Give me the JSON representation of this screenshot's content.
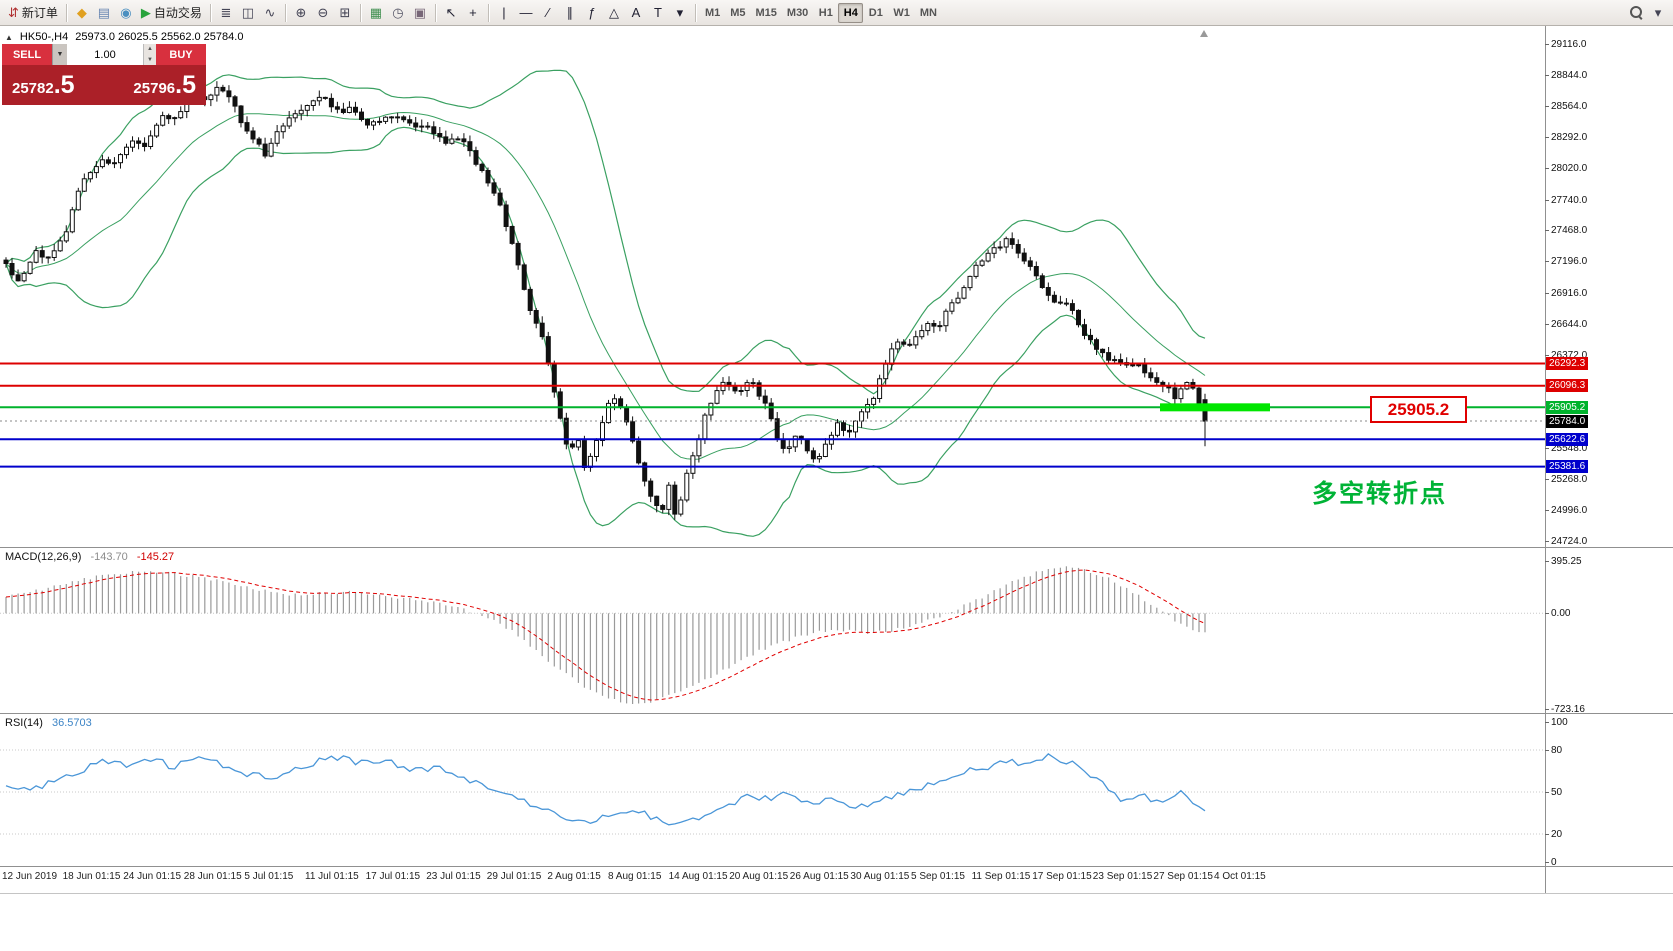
{
  "toolbar": {
    "groups": [
      {
        "items": [
          {
            "name": "new-order",
            "glyph": "⇵",
            "color": "#b03030",
            "label": "新订单"
          }
        ]
      },
      {
        "items": [
          {
            "name": "metaeditor",
            "glyph": "◆",
            "color": "#e0a020"
          },
          {
            "name": "market-watch",
            "glyph": "▤",
            "color": "#6886b2"
          },
          {
            "name": "strategy-tester",
            "glyph": "◉",
            "color": "#4a8fc0"
          },
          {
            "name": "autotrading",
            "glyph": "▶",
            "color": "#28a33c",
            "label": "自动交易"
          }
        ]
      },
      {
        "items": [
          {
            "name": "chart-bars",
            "glyph": "≣",
            "color": "#444455"
          },
          {
            "name": "chart-candles",
            "glyph": "◫",
            "color": "#444455"
          },
          {
            "name": "chart-line",
            "glyph": "∿",
            "color": "#444455"
          }
        ]
      },
      {
        "items": [
          {
            "name": "zoom-in",
            "glyph": "⊕",
            "color": "#444455"
          },
          {
            "name": "zoom-out",
            "glyph": "⊖",
            "color": "#444455"
          },
          {
            "name": "tile-windows",
            "glyph": "⊞",
            "color": "#444455"
          }
        ]
      },
      {
        "items": [
          {
            "name": "indicators-list",
            "glyph": "▦",
            "color": "#3f8f4f"
          },
          {
            "name": "period-clock",
            "glyph": "◷",
            "color": "#555566"
          },
          {
            "name": "chart-snapshot",
            "glyph": "▣",
            "color": "#776677"
          }
        ]
      },
      {
        "items": [
          {
            "name": "cursor",
            "glyph": "↖",
            "color": "#222233"
          },
          {
            "name": "crosshair",
            "glyph": "+",
            "color": "#222233"
          }
        ]
      },
      {
        "items": [
          {
            "name": "draw-vertical-line",
            "glyph": "|",
            "color": "#222233"
          },
          {
            "name": "draw-horizontal-line",
            "glyph": "—",
            "color": "#222233"
          },
          {
            "name": "draw-trendline",
            "glyph": "∕",
            "color": "#222233"
          },
          {
            "name": "draw-channel",
            "glyph": "∥",
            "color": "#222233"
          },
          {
            "name": "draw-fibonacci",
            "glyph": "ƒ",
            "color": "#222233"
          },
          {
            "name": "draw-shapes",
            "glyph": "△",
            "color": "#222233"
          },
          {
            "name": "draw-text",
            "glyph": "A",
            "color": "#222233"
          },
          {
            "name": "draw-label",
            "glyph": "T",
            "color": "#222233"
          },
          {
            "name": "draw-arrows",
            "glyph": "▾",
            "color": "#222233"
          }
        ]
      }
    ],
    "timeframes": {
      "labels": [
        "M1",
        "M5",
        "M15",
        "M30",
        "H1",
        "H4",
        "D1",
        "W1",
        "MN"
      ],
      "active": "H4"
    },
    "right_items": [
      {
        "name": "search",
        "glyph": "mag"
      },
      {
        "name": "more",
        "glyph": "▾",
        "color": "#444455"
      }
    ]
  },
  "chart": {
    "title_symbol": "HK50-,H4",
    "title_ohlc": "25973.0 26025.5 25562.0 25784.0"
  },
  "trade_panel": {
    "sell_label": "SELL",
    "buy_label": "BUY",
    "volume": "1.00",
    "sell_price_main": "25782",
    "sell_price_frac": ".5",
    "buy_price_main": "25796",
    "buy_price_frac": ".5"
  },
  "macd": {
    "name": "MACD(12,26,9)",
    "value_main": "-143.70",
    "value_signal": "-145.27"
  },
  "rsi": {
    "name": "RSI(14)",
    "value": "36.5703"
  },
  "annotations": {
    "price_callout": "25905.2",
    "note": "多空转折点"
  },
  "time_axis": [
    "12 Jun 2019",
    "18 Jun 01:15",
    "24 Jun 01:15",
    "28 Jun 01:15",
    "5 Jul 01:15",
    "11 Jul 01:15",
    "17 Jul 01:15",
    "23 Jul 01:15",
    "29 Jul 01:15",
    "2 Aug 01:15",
    "8 Aug 01:15",
    "14 Aug 01:15",
    "20 Aug 01:15",
    "26 Aug 01:15",
    "30 Aug 01:15",
    "5 Sep 01:15",
    "11 Sep 01:15",
    "17 Sep 01:15",
    "23 Sep 01:15",
    "27 Sep 01:15",
    "4 Oct 01:15"
  ],
  "chart_data": {
    "type": "candlestick",
    "symbol": "HK50-",
    "timeframe": "H4",
    "ohlc_header": {
      "open": 25973.0,
      "high": 26025.5,
      "low": 25562.0,
      "close": 25784.0
    },
    "bid": 25782.5,
    "ask": 25796.5,
    "current_price": 25784.0,
    "y_axis_ticks": [
      29116.0,
      28844.0,
      28564.0,
      28292.0,
      28020.0,
      27740.0,
      27468.0,
      27196.0,
      26916.0,
      26644.0,
      26372.0,
      25548.0,
      25268.0,
      24996.0,
      24724.0
    ],
    "h_lines": [
      {
        "price": 26292.3,
        "color": "#dd0000",
        "width": 2
      },
      {
        "price": 26096.3,
        "color": "#dd0000",
        "width": 2
      },
      {
        "price": 25905.2,
        "color": "#00b32c",
        "width": 2,
        "highlight_from": 0.751,
        "highlight_to": 0.822
      },
      {
        "price": 25622.6,
        "color": "#0000cc",
        "width": 2
      },
      {
        "price": 25381.6,
        "color": "#0000cc",
        "width": 2
      }
    ],
    "bollinger": {
      "period": 20,
      "deviation": 2
    },
    "price_path_anchors": [
      [
        0.0,
        27150
      ],
      [
        0.012,
        27000
      ],
      [
        0.025,
        27300
      ],
      [
        0.037,
        27200
      ],
      [
        0.05,
        27450
      ],
      [
        0.062,
        27850
      ],
      [
        0.079,
        28100
      ],
      [
        0.091,
        28050
      ],
      [
        0.104,
        28250
      ],
      [
        0.116,
        28200
      ],
      [
        0.129,
        28500
      ],
      [
        0.141,
        28450
      ],
      [
        0.154,
        28700
      ],
      [
        0.166,
        28600
      ],
      [
        0.178,
        28780
      ],
      [
        0.191,
        28550
      ],
      [
        0.203,
        28300
      ],
      [
        0.216,
        28150
      ],
      [
        0.228,
        28350
      ],
      [
        0.241,
        28500
      ],
      [
        0.253,
        28600
      ],
      [
        0.266,
        28650
      ],
      [
        0.278,
        28500
      ],
      [
        0.29,
        28550
      ],
      [
        0.303,
        28400
      ],
      [
        0.315,
        28450
      ],
      [
        0.328,
        28500
      ],
      [
        0.34,
        28350
      ],
      [
        0.353,
        28400
      ],
      [
        0.365,
        28250
      ],
      [
        0.378,
        28300
      ],
      [
        0.39,
        28100
      ],
      [
        0.402,
        27900
      ],
      [
        0.415,
        27600
      ],
      [
        0.423,
        27300
      ],
      [
        0.432,
        26950
      ],
      [
        0.44,
        26700
      ],
      [
        0.448,
        26500
      ],
      [
        0.456,
        26100
      ],
      [
        0.463,
        25750
      ],
      [
        0.47,
        25450
      ],
      [
        0.476,
        25650
      ],
      [
        0.483,
        25350
      ],
      [
        0.49,
        25550
      ],
      [
        0.498,
        25800
      ],
      [
        0.506,
        26000
      ],
      [
        0.515,
        25900
      ],
      [
        0.523,
        25600
      ],
      [
        0.531,
        25300
      ],
      [
        0.539,
        25100
      ],
      [
        0.546,
        24950
      ],
      [
        0.553,
        25200
      ],
      [
        0.559,
        24880
      ],
      [
        0.566,
        25250
      ],
      [
        0.573,
        25500
      ],
      [
        0.581,
        25750
      ],
      [
        0.589,
        26000
      ],
      [
        0.598,
        26100
      ],
      [
        0.61,
        26050
      ],
      [
        0.622,
        26150
      ],
      [
        0.635,
        25900
      ],
      [
        0.643,
        25650
      ],
      [
        0.651,
        25500
      ],
      [
        0.66,
        25700
      ],
      [
        0.668,
        25500
      ],
      [
        0.676,
        25400
      ],
      [
        0.685,
        25600
      ],
      [
        0.693,
        25750
      ],
      [
        0.701,
        25650
      ],
      [
        0.71,
        25800
      ],
      [
        0.718,
        25900
      ],
      [
        0.726,
        26050
      ],
      [
        0.734,
        26300
      ],
      [
        0.743,
        26500
      ],
      [
        0.751,
        26450
      ],
      [
        0.759,
        26550
      ],
      [
        0.768,
        26650
      ],
      [
        0.776,
        26600
      ],
      [
        0.784,
        26750
      ],
      [
        0.793,
        26850
      ],
      [
        0.801,
        27000
      ],
      [
        0.809,
        27150
      ],
      [
        0.817,
        27250
      ],
      [
        0.826,
        27300
      ],
      [
        0.834,
        27400
      ],
      [
        0.842,
        27300
      ],
      [
        0.851,
        27200
      ],
      [
        0.859,
        27050
      ],
      [
        0.867,
        26900
      ],
      [
        0.876,
        26800
      ],
      [
        0.884,
        26850
      ],
      [
        0.892,
        26700
      ],
      [
        0.9,
        26550
      ],
      [
        0.909,
        26450
      ],
      [
        0.917,
        26350
      ],
      [
        0.925,
        26300
      ],
      [
        0.934,
        26250
      ],
      [
        0.942,
        26300
      ],
      [
        0.95,
        26200
      ],
      [
        0.959,
        26150
      ],
      [
        0.967,
        26100
      ],
      [
        0.975,
        26000
      ],
      [
        0.983,
        26150
      ],
      [
        0.992,
        26050
      ],
      [
        1.0,
        25784
      ]
    ],
    "macd": {
      "params": "12,26,9",
      "main": -143.7,
      "signal": -145.27,
      "scale_max": 395.25,
      "scale_min": -723.16,
      "anchors": [
        [
          0.0,
          120
        ],
        [
          0.03,
          180
        ],
        [
          0.06,
          250
        ],
        [
          0.09,
          300
        ],
        [
          0.11,
          320
        ],
        [
          0.14,
          300
        ],
        [
          0.17,
          260
        ],
        [
          0.2,
          200
        ],
        [
          0.23,
          140
        ],
        [
          0.26,
          150
        ],
        [
          0.29,
          160
        ],
        [
          0.32,
          130
        ],
        [
          0.35,
          90
        ],
        [
          0.38,
          40
        ],
        [
          0.4,
          -30
        ],
        [
          0.42,
          -120
        ],
        [
          0.44,
          -260
        ],
        [
          0.46,
          -420
        ],
        [
          0.48,
          -540
        ],
        [
          0.5,
          -640
        ],
        [
          0.52,
          -690
        ],
        [
          0.54,
          -660
        ],
        [
          0.56,
          -600
        ],
        [
          0.58,
          -520
        ],
        [
          0.6,
          -420
        ],
        [
          0.62,
          -320
        ],
        [
          0.64,
          -240
        ],
        [
          0.66,
          -180
        ],
        [
          0.68,
          -140
        ],
        [
          0.7,
          -130
        ],
        [
          0.72,
          -150
        ],
        [
          0.74,
          -130
        ],
        [
          0.76,
          -80
        ],
        [
          0.78,
          -20
        ],
        [
          0.8,
          60
        ],
        [
          0.82,
          150
        ],
        [
          0.84,
          240
        ],
        [
          0.86,
          310
        ],
        [
          0.88,
          350
        ],
        [
          0.9,
          330
        ],
        [
          0.92,
          260
        ],
        [
          0.94,
          160
        ],
        [
          0.96,
          40
        ],
        [
          0.98,
          -90
        ],
        [
          1.0,
          -143.7
        ]
      ]
    },
    "rsi": {
      "period": 14,
      "value": 36.5703,
      "levels": [
        80,
        50,
        20
      ],
      "axis": [
        100,
        80,
        50,
        20,
        0
      ],
      "anchors": [
        [
          0.0,
          55
        ],
        [
          0.02,
          50
        ],
        [
          0.04,
          58
        ],
        [
          0.06,
          65
        ],
        [
          0.08,
          72
        ],
        [
          0.1,
          70
        ],
        [
          0.12,
          74
        ],
        [
          0.14,
          68
        ],
        [
          0.16,
          73
        ],
        [
          0.18,
          70
        ],
        [
          0.2,
          63
        ],
        [
          0.22,
          60
        ],
        [
          0.24,
          66
        ],
        [
          0.26,
          72
        ],
        [
          0.28,
          74
        ],
        [
          0.3,
          70
        ],
        [
          0.32,
          72
        ],
        [
          0.34,
          65
        ],
        [
          0.36,
          68
        ],
        [
          0.38,
          60
        ],
        [
          0.4,
          55
        ],
        [
          0.42,
          48
        ],
        [
          0.44,
          40
        ],
        [
          0.46,
          33
        ],
        [
          0.48,
          28
        ],
        [
          0.5,
          33
        ],
        [
          0.52,
          38
        ],
        [
          0.54,
          32
        ],
        [
          0.56,
          26
        ],
        [
          0.58,
          31
        ],
        [
          0.6,
          40
        ],
        [
          0.62,
          47
        ],
        [
          0.64,
          45
        ],
        [
          0.65,
          48
        ],
        [
          0.67,
          42
        ],
        [
          0.69,
          45
        ],
        [
          0.71,
          38
        ],
        [
          0.73,
          44
        ],
        [
          0.75,
          50
        ],
        [
          0.77,
          55
        ],
        [
          0.79,
          62
        ],
        [
          0.81,
          67
        ],
        [
          0.83,
          70
        ],
        [
          0.85,
          72
        ],
        [
          0.87,
          75
        ],
        [
          0.89,
          70
        ],
        [
          0.91,
          60
        ],
        [
          0.92,
          50
        ],
        [
          0.93,
          45
        ],
        [
          0.95,
          48
        ],
        [
          0.96,
          42
        ],
        [
          0.97,
          47
        ],
        [
          0.98,
          52
        ],
        [
          0.99,
          44
        ],
        [
          1.0,
          36.57
        ]
      ]
    }
  }
}
